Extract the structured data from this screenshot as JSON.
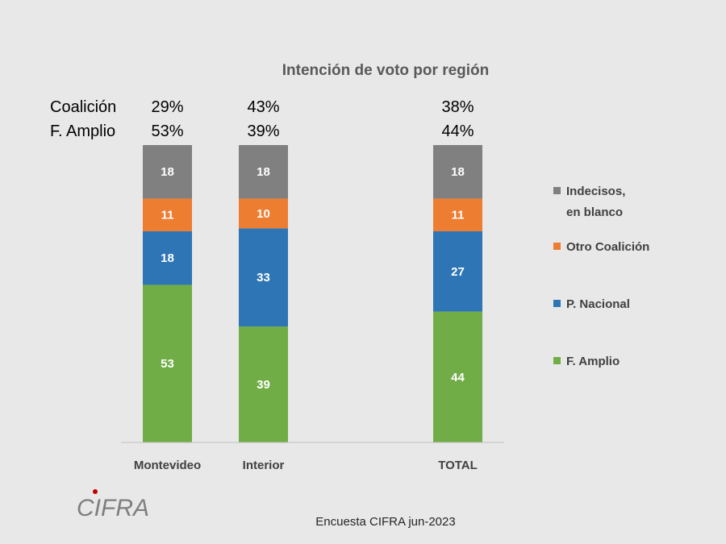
{
  "chart_data": {
    "type": "bar",
    "stacked": true,
    "title": "Intención de voto por región",
    "categories": [
      "Montevideo",
      "Interior",
      "TOTAL"
    ],
    "series": [
      {
        "name": "F. Amplio",
        "values": [
          53,
          39,
          44
        ],
        "color": "#70ad47"
      },
      {
        "name": "P. Nacional",
        "values": [
          18,
          33,
          27
        ],
        "color": "#2e75b6"
      },
      {
        "name": "Otro Coalición",
        "values": [
          11,
          10,
          11
        ],
        "color": "#ed7d31"
      },
      {
        "name": "Indecisos, en blanco",
        "values": [
          18,
          18,
          18
        ],
        "color": "#808080"
      }
    ],
    "summary_rows": [
      {
        "label": "Coalición",
        "values": [
          "29%",
          "43%",
          "38%"
        ]
      },
      {
        "label": "F. Amplio",
        "values": [
          "53%",
          "39%",
          "44%"
        ]
      }
    ],
    "legend_position": "right",
    "grid": false
  },
  "source_note": "Encuesta CIFRA jun-2023",
  "logo_text": "CIFRA"
}
